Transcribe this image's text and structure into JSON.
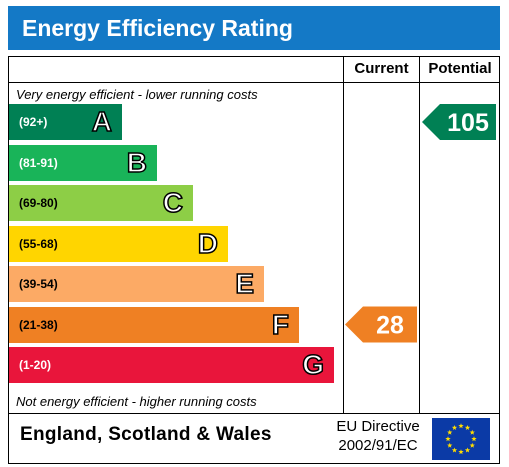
{
  "title": "Energy Efficiency Rating",
  "columns": {
    "current": "Current",
    "potential": "Potential"
  },
  "captions": {
    "top": "Very energy efficient - lower running costs",
    "bottom": "Not energy efficient - higher running costs"
  },
  "footer": {
    "region": "England, Scotland & Wales",
    "directive_line1": "EU Directive",
    "directive_line2": "2002/91/EC"
  },
  "colors": {
    "A": "#008054",
    "B": "#19b459",
    "C": "#8dce46",
    "D": "#ffd500",
    "E": "#fcaa65",
    "F": "#ef8023",
    "G": "#e9153b",
    "title_bar": "#1479c6",
    "eu_flag": "#0b3aa6",
    "eu_star": "#ffdd00"
  },
  "chart_data": {
    "type": "bar",
    "bands": [
      {
        "letter": "A",
        "range": "(92+)"
      },
      {
        "letter": "B",
        "range": "(81-91)"
      },
      {
        "letter": "C",
        "range": "(69-80)"
      },
      {
        "letter": "D",
        "range": "(55-68)"
      },
      {
        "letter": "E",
        "range": "(39-54)"
      },
      {
        "letter": "F",
        "range": "(21-38)"
      },
      {
        "letter": "G",
        "range": "(1-20)"
      }
    ],
    "current": {
      "value": "28",
      "band": "F"
    },
    "potential": {
      "value": "105",
      "band": "A"
    }
  }
}
